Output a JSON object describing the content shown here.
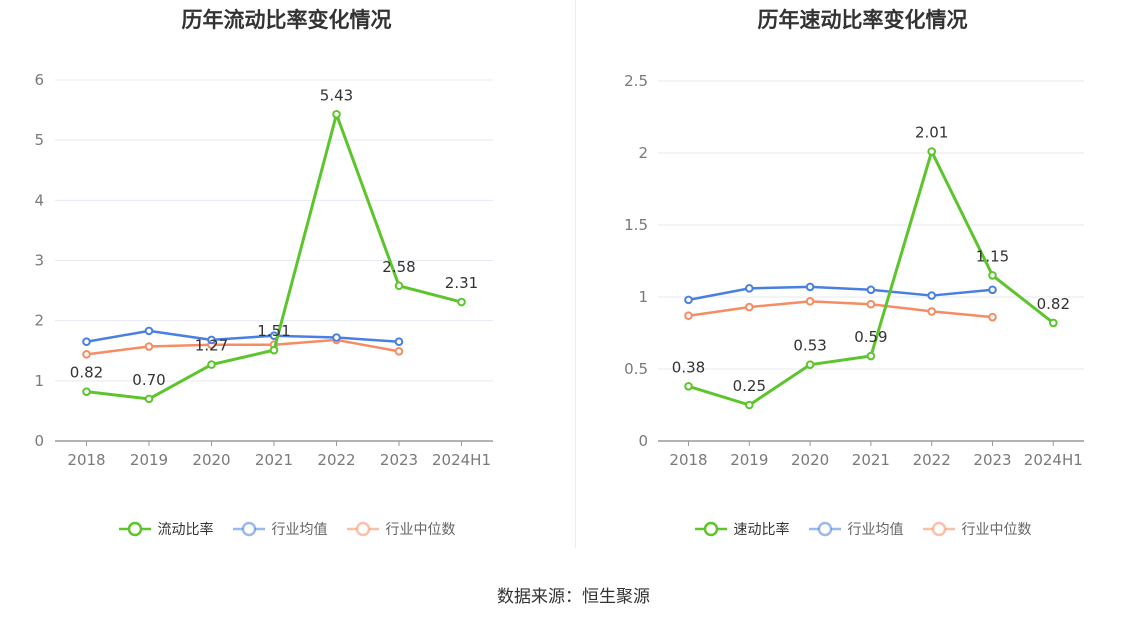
{
  "source_text": "数据来源：恒生聚源",
  "chart_data": [
    {
      "type": "line",
      "title": "历年流动比率变化情况",
      "categories": [
        "2018",
        "2019",
        "2020",
        "2021",
        "2022",
        "2023",
        "2024H1"
      ],
      "ylim": [
        0,
        6
      ],
      "yticks": [
        0,
        1,
        2,
        3,
        4,
        5,
        6
      ],
      "grid": true,
      "legend_position": "bottom",
      "series": [
        {
          "name": "流动比率",
          "color": "#5cc52c",
          "values": [
            0.82,
            0.7,
            1.27,
            1.51,
            5.43,
            2.58,
            2.31
          ],
          "labels": [
            "0.82",
            "0.70",
            "1.27",
            "1.51",
            "5.43",
            "2.58",
            "2.31"
          ],
          "label_offsets": [
            -14,
            -14,
            -14,
            14,
            -14,
            -14,
            -14
          ]
        },
        {
          "name": "行业均值",
          "color": "#4a7fe2",
          "values": [
            1.65,
            1.83,
            1.68,
            1.75,
            1.72,
            1.65,
            null
          ]
        },
        {
          "name": "行业中位数",
          "color": "#f58c64",
          "values": [
            1.44,
            1.57,
            1.6,
            1.6,
            1.68,
            1.49,
            null
          ]
        }
      ]
    },
    {
      "type": "line",
      "title": "历年速动比率变化情况",
      "categories": [
        "2018",
        "2019",
        "2020",
        "2021",
        "2022",
        "2023",
        "2024H1"
      ],
      "ylim": [
        0,
        2.5
      ],
      "yticks": [
        0,
        0.5,
        1,
        1.5,
        2,
        2.5
      ],
      "grid": true,
      "legend_position": "bottom",
      "series": [
        {
          "name": "速动比率",
          "color": "#5cc52c",
          "values": [
            0.38,
            0.25,
            0.53,
            0.59,
            2.01,
            1.15,
            0.82
          ],
          "labels": [
            "0.38",
            "0.25",
            "0.53",
            "0.59",
            "2.01",
            "1.15",
            "0.82"
          ],
          "label_offsets": [
            -14,
            -14,
            -14,
            -14,
            -14,
            -14,
            -14
          ]
        },
        {
          "name": "行业均值",
          "color": "#4a7fe2",
          "values": [
            0.98,
            1.06,
            1.07,
            1.05,
            1.01,
            1.05,
            null
          ]
        },
        {
          "name": "行业中位数",
          "color": "#f58c64",
          "values": [
            0.87,
            0.93,
            0.97,
            0.95,
            0.9,
            0.86,
            null
          ]
        }
      ]
    }
  ]
}
